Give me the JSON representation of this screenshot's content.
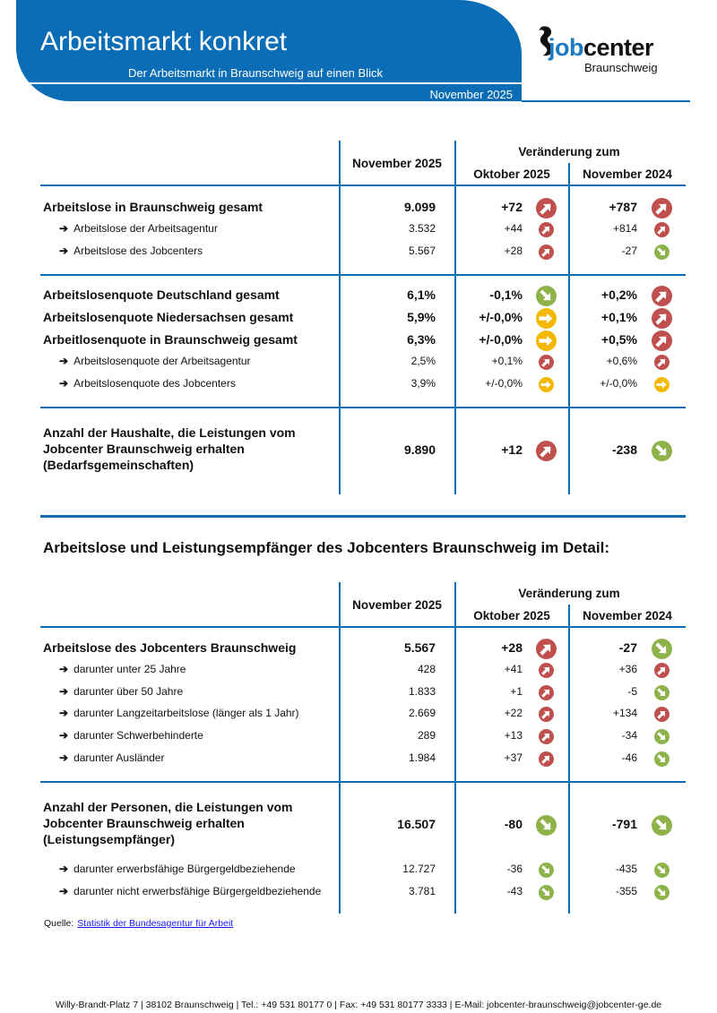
{
  "header": {
    "title": "Arbeitsmarkt konkret",
    "subtitle": "Der Arbeitsmarkt in Braunschweig auf einen Blick",
    "date": "November 2025"
  },
  "logo": {
    "word_a": "job",
    "word_b": "center",
    "city": "Braunschweig"
  },
  "colors": {
    "brand": "#0b6db5",
    "up": "#c0504d",
    "down": "#8db34a",
    "neutral": "#f5b800"
  },
  "table1": {
    "col_current": "November 2025",
    "col_change": "Veränderung zum",
    "col_prev_month": "Oktober 2025",
    "col_prev_year": "November 2024",
    "rows": [
      {
        "style": "bold",
        "label": "Arbeitslose in Braunschweig gesamt",
        "value": "9.099",
        "chg_month": "+72",
        "trend_month": "up",
        "chg_year": "+787",
        "trend_year": "up"
      },
      {
        "style": "sub",
        "label": "Arbeitslose der Arbeitsagentur",
        "value": "3.532",
        "chg_month": "+44",
        "trend_month": "up",
        "chg_year": "+814",
        "trend_year": "up"
      },
      {
        "style": "sub",
        "label": "Arbeitslose des Jobcenters",
        "value": "5.567",
        "chg_month": "+28",
        "trend_month": "up",
        "chg_year": "-27",
        "trend_year": "down"
      },
      {
        "style": "bold",
        "label": "Arbeitslosenquote Deutschland gesamt",
        "value": "6,1%",
        "chg_month": "-0,1%",
        "trend_month": "down",
        "chg_year": "+0,2%",
        "trend_year": "up"
      },
      {
        "style": "bold",
        "label": "Arbeitslosenquote Niedersachsen gesamt",
        "value": "5,9%",
        "chg_month": "+/-0,0%",
        "trend_month": "neutral",
        "chg_year": "+0,1%",
        "trend_year": "up"
      },
      {
        "style": "bold",
        "label": "Arbeitlosenquote in Braunschweig gesamt",
        "value": "6,3%",
        "chg_month": "+/-0,0%",
        "trend_month": "neutral",
        "chg_year": "+0,5%",
        "trend_year": "up"
      },
      {
        "style": "sub",
        "label": "Arbeitslosenquote der Arbeitsagentur",
        "value": "2,5%",
        "chg_month": "+0,1%",
        "trend_month": "up",
        "chg_year": "+0,6%",
        "trend_year": "up"
      },
      {
        "style": "sub",
        "label": "Arbeitslosenquote des Jobcenters",
        "value": "3,9%",
        "chg_month": "+/-0,0%",
        "trend_month": "neutral",
        "chg_year": "+/-0,0%",
        "trend_year": "neutral"
      },
      {
        "style": "bold",
        "multi": true,
        "label": "Anzahl der Haushalte, die Leistungen vom\nJobcenter Braunschweig erhalten\n(Bedarfsgemeinschaften)",
        "value": "9.890",
        "chg_month": "+12",
        "trend_month": "up",
        "chg_year": "-238",
        "trend_year": "down"
      }
    ]
  },
  "section_title": "Arbeitslose und Leistungsempfänger des Jobcenters Braunschweig im Detail:",
  "table2": {
    "col_current": "November 2025",
    "col_change": "Veränderung zum",
    "col_prev_month": "Oktober 2025",
    "col_prev_year": "November 2024",
    "rows": [
      {
        "style": "bold",
        "label": "Arbeitslose des Jobcenters Braunschweig",
        "value": "5.567",
        "chg_month": "+28",
        "trend_month": "up",
        "chg_year": "-27",
        "trend_year": "down"
      },
      {
        "style": "sub",
        "label": "darunter unter 25 Jahre",
        "value": "428",
        "chg_month": "+41",
        "trend_month": "up",
        "chg_year": "+36",
        "trend_year": "up"
      },
      {
        "style": "sub",
        "label": "darunter über 50 Jahre",
        "value": "1.833",
        "chg_month": "+1",
        "trend_month": "up",
        "chg_year": "-5",
        "trend_year": "down"
      },
      {
        "style": "sub",
        "label": "darunter Langzeitarbeitslose (länger als 1 Jahr)",
        "value": "2.669",
        "chg_month": "+22",
        "trend_month": "up",
        "chg_year": "+134",
        "trend_year": "up"
      },
      {
        "style": "sub",
        "label": "darunter Schwerbehinderte",
        "value": "289",
        "chg_month": "+13",
        "trend_month": "up",
        "chg_year": "-34",
        "trend_year": "down"
      },
      {
        "style": "sub",
        "label": "darunter Ausländer",
        "value": "1.984",
        "chg_month": "+37",
        "trend_month": "up",
        "chg_year": "-46",
        "trend_year": "down"
      },
      {
        "style": "bold",
        "multi": true,
        "label": "Anzahl der Personen, die Leistungen vom\nJobcenter Braunschweig erhalten\n(Leistungsempfänger)",
        "value": "16.507",
        "chg_month": "-80",
        "trend_month": "down",
        "chg_year": "-791",
        "trend_year": "down"
      },
      {
        "style": "sub",
        "label": "darunter erwerbsfähige Bürgergeldbeziehende",
        "value": "12.727",
        "chg_month": "-36",
        "trend_month": "down",
        "chg_year": "-435",
        "trend_year": "down"
      },
      {
        "style": "sub",
        "label": "darunter nicht erwerbsfähige Bürgergeldbeziehende",
        "value": "3.781",
        "chg_month": "-43",
        "trend_month": "down",
        "chg_year": "-355",
        "trend_year": "down"
      }
    ]
  },
  "source": {
    "label": "Quelle:",
    "link": "Statistik der Bundesagentur für Arbeit"
  },
  "footer": "Willy-Brandt-Platz 7  |  38102 Braunschweig  |  Tel.: +49 531 80177 0  |  Fax: +49 531 80177 3333  |  E-Mail: jobcenter-braunschweig@jobcenter-ge.de"
}
